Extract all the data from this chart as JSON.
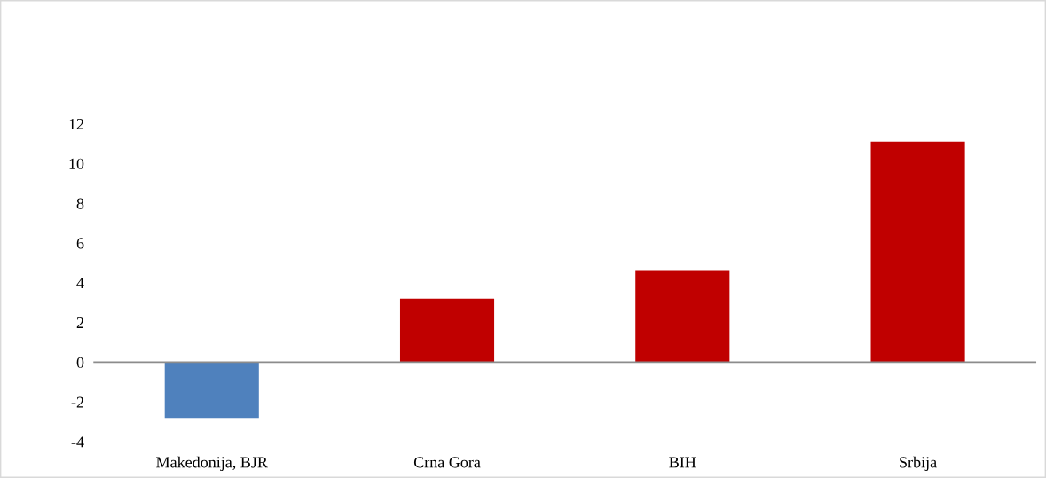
{
  "chart_data": {
    "type": "bar",
    "categories": [
      "Makedonija, BJR",
      "Crna Gora",
      "BIH",
      "Srbija"
    ],
    "values": [
      -2.8,
      3.2,
      4.6,
      11.1
    ],
    "colors": [
      "#4f81bd",
      "#c00000",
      "#c00000",
      "#c00000"
    ],
    "ylim": [
      -4,
      12
    ],
    "yticks": [
      -4,
      -2,
      0,
      2,
      4,
      6,
      8,
      10,
      12
    ],
    "legend": false
  }
}
